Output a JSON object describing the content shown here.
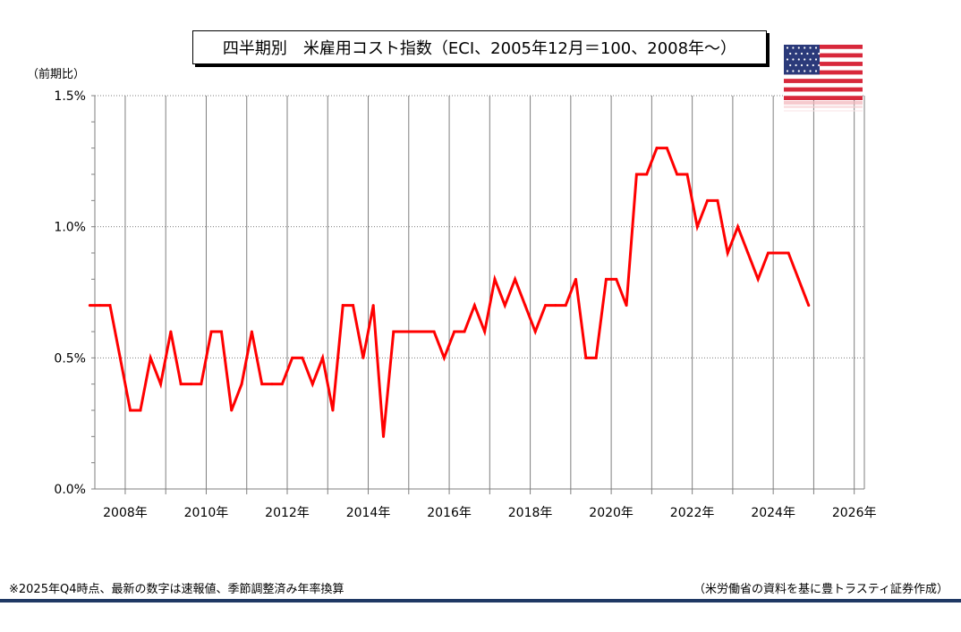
{
  "title": "四半期別　米雇用コスト指数（ECI、2005年12月＝100、2008年～）",
  "unit_label": "（前期比）",
  "footnote_left": "※2025年Q4時点、最新の数字は速報値、季節調整済み年率換算",
  "footnote_right": "（米労働省の資料を基に豊トラスティ証券作成）",
  "flag_icon": "us-flag-icon",
  "chart_data": {
    "type": "line",
    "title": "四半期別　米雇用コスト指数（ECI、2005年12月＝100、2008年～）",
    "ylabel": "（前期比）",
    "xlabel": "",
    "ylim": [
      0.0,
      1.5
    ],
    "yticks": [
      0.0,
      0.5,
      1.0,
      1.5
    ],
    "ytick_labels": [
      "0.0%",
      "0.5%",
      "1.0%",
      "1.5%"
    ],
    "xlim": [
      "2008年",
      "2026年"
    ],
    "xtick_labels": [
      "2008年",
      "2010年",
      "2012年",
      "2014年",
      "2016年",
      "2018年",
      "2020年",
      "2022年",
      "2024年",
      "2026年"
    ],
    "grid": {
      "vertical": true,
      "horizontal_dotted": true
    },
    "series_color": "#ff0000",
    "series": [
      {
        "name": "",
        "x": [
          "2008Q1",
          "2008Q2",
          "2008Q3",
          "2008Q4",
          "2009Q1",
          "2009Q2",
          "2009Q3",
          "2009Q4",
          "2010Q1",
          "2010Q2",
          "2010Q3",
          "2010Q4",
          "2011Q1",
          "2011Q2",
          "2011Q3",
          "2011Q4",
          "2012Q1",
          "2012Q2",
          "2012Q3",
          "2012Q4",
          "2013Q1",
          "2013Q2",
          "2013Q3",
          "2013Q4",
          "2014Q1",
          "2014Q2",
          "2014Q3",
          "2014Q4",
          "2015Q1",
          "2015Q2",
          "2015Q3",
          "2015Q4",
          "2016Q1",
          "2016Q2",
          "2016Q3",
          "2016Q4",
          "2017Q1",
          "2017Q2",
          "2017Q3",
          "2017Q4",
          "2018Q1",
          "2018Q2",
          "2018Q3",
          "2018Q4",
          "2019Q1",
          "2019Q2",
          "2019Q3",
          "2019Q4",
          "2020Q1",
          "2020Q2",
          "2020Q3",
          "2020Q4",
          "2021Q1",
          "2021Q2",
          "2021Q3",
          "2021Q4",
          "2022Q1",
          "2022Q2",
          "2022Q3",
          "2022Q4",
          "2023Q1",
          "2023Q2",
          "2023Q3",
          "2023Q4",
          "2024Q1",
          "2024Q2",
          "2024Q3",
          "2024Q4",
          "2025Q1",
          "2025Q2",
          "2025Q3",
          "2025Q4"
        ],
        "values": [
          0.7,
          0.7,
          0.7,
          0.5,
          0.3,
          0.3,
          0.5,
          0.4,
          0.6,
          0.4,
          0.4,
          0.4,
          0.6,
          0.6,
          0.3,
          0.4,
          0.6,
          0.4,
          0.4,
          0.4,
          0.5,
          0.5,
          0.4,
          0.5,
          0.3,
          0.7,
          0.7,
          0.5,
          0.7,
          0.2,
          0.6,
          0.6,
          0.6,
          0.6,
          0.6,
          0.5,
          0.6,
          0.6,
          0.7,
          0.6,
          0.8,
          0.7,
          0.8,
          0.7,
          0.6,
          0.7,
          0.7,
          0.7,
          0.8,
          0.5,
          0.5,
          0.8,
          0.8,
          0.7,
          1.2,
          1.2,
          1.3,
          1.3,
          1.2,
          1.2,
          1.0,
          1.1,
          1.1,
          0.9,
          1.0,
          0.9,
          0.8,
          0.9,
          0.9,
          0.9,
          0.8,
          0.7
        ]
      }
    ]
  }
}
